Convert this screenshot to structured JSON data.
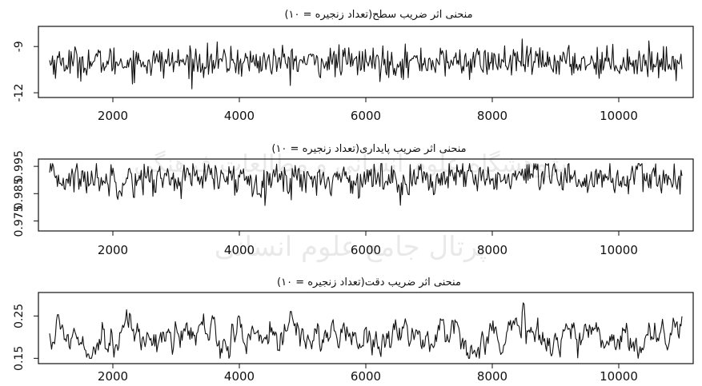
{
  "watermark": {
    "lines": [
      "پژوهشگاه علوم انسانی و مطالعات فرهنگی",
      "پرتال جامع علوم انسانی"
    ],
    "color": "#d8d8d8"
  },
  "chart_data": [
    {
      "type": "line",
      "title": "منحنی اثر ضریب سطح(تعداد زنجیره = ۱۰)",
      "xlabel": "",
      "ylabel": "",
      "x_start": 1000,
      "x_end": 11000,
      "xlim": [
        1000,
        11000
      ],
      "xticks": [
        2000,
        4000,
        6000,
        8000,
        10000
      ],
      "ylim": [
        -12.1,
        -7.9
      ],
      "yticks": [
        -9,
        -12
      ],
      "ytick_labels": [
        "-9",
        "-12"
      ],
      "mean": -10.0,
      "sd": 0.5,
      "ar": 0.0,
      "min": -12.0,
      "max": -8.0,
      "line_color": "#111111",
      "series": [
        {
          "values": []
        }
      ]
    },
    {
      "type": "line",
      "title": "منحنی اثر ضریب پایداری(تعداد زنجیره = ۱۰)",
      "xlabel": "",
      "ylabel": "",
      "x_start": 1000,
      "x_end": 11000,
      "xlim": [
        1000,
        11000
      ],
      "xticks": [
        2000,
        4000,
        6000,
        8000,
        10000
      ],
      "ylim": [
        0.9725,
        0.9965
      ],
      "yticks": [
        0.975,
        0.985,
        0.995
      ],
      "ytick_labels": [
        "0.975",
        "0.985",
        "0.995"
      ],
      "mean": 0.9905,
      "sd": 0.003,
      "ar": 0.2,
      "min": 0.974,
      "max": 0.996,
      "line_color": "#111111",
      "series": [
        {
          "values": []
        }
      ]
    },
    {
      "type": "line",
      "title": "منحنی اثر ضریب دقت(تعداد زنجیره = ۱۰)",
      "xlabel": "",
      "ylabel": "",
      "x_start": 1000,
      "x_end": 11000,
      "xlim": [
        1000,
        11000
      ],
      "xticks": [
        2000,
        4000,
        6000,
        8000,
        10000
      ],
      "ylim": [
        0.145,
        0.298
      ],
      "yticks": [
        0.15,
        0.25
      ],
      "ytick_labels": [
        "0.15",
        "0.25"
      ],
      "mean": 0.205,
      "sd": 0.026,
      "ar": 0.75,
      "min": 0.15,
      "max": 0.295,
      "line_color": "#111111",
      "series": [
        {
          "values": []
        }
      ]
    }
  ]
}
